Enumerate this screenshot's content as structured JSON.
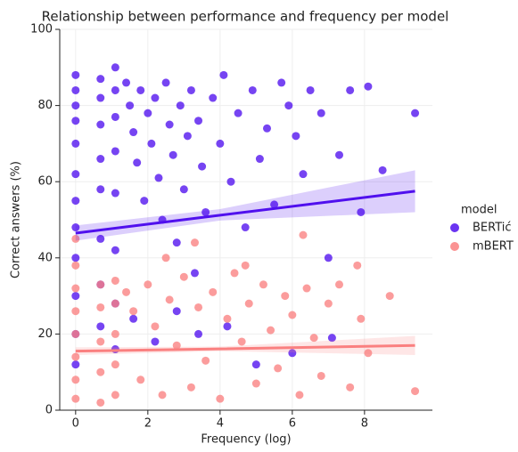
{
  "chart_data": {
    "type": "scatter",
    "title": "Relationship between performance and frequency per model",
    "x_label": "Frequency (log)",
    "y_label": "Correct answers (%)",
    "legend_title": "model",
    "legend_position": "right",
    "grid": true,
    "xlim": [
      -0.44,
      9.88
    ],
    "ylim": [
      0,
      100
    ],
    "xticks": [
      0,
      2,
      4,
      6,
      8
    ],
    "yticks": [
      0,
      20,
      40,
      60,
      80,
      100
    ],
    "series": [
      {
        "name": "BERTić",
        "color": "#5010ee",
        "x": [
          0,
          0,
          0,
          0,
          0,
          0,
          0,
          0,
          0,
          0,
          0,
          0,
          0.69,
          0.69,
          0.69,
          0.69,
          0.69,
          0.69,
          0.69,
          0.69,
          1.1,
          1.1,
          1.1,
          1.1,
          1.1,
          1.1,
          1.1,
          1.1,
          1.4,
          1.5,
          1.6,
          1.7,
          1.8,
          1.9,
          2.0,
          2.1,
          2.2,
          2.3,
          2.4,
          2.5,
          2.6,
          2.7,
          2.8,
          2.9,
          3.0,
          3.1,
          3.2,
          3.3,
          3.4,
          3.5,
          3.6,
          3.8,
          4.0,
          4.1,
          4.3,
          4.5,
          4.7,
          4.9,
          5.1,
          5.3,
          5.5,
          5.7,
          5.9,
          6.1,
          6.3,
          6.5,
          6.8,
          7.0,
          7.3,
          7.6,
          7.9,
          8.1,
          8.5,
          9.4,
          1.6,
          2.2,
          2.8,
          3.4,
          4.2,
          5.0,
          6.0,
          7.1
        ],
        "values": [
          88,
          84,
          80,
          76,
          70,
          62,
          55,
          48,
          40,
          30,
          20,
          12,
          87,
          82,
          75,
          66,
          58,
          45,
          33,
          22,
          90,
          84,
          77,
          68,
          57,
          42,
          28,
          16,
          86,
          80,
          73,
          65,
          84,
          55,
          78,
          70,
          82,
          61,
          50,
          86,
          75,
          67,
          44,
          80,
          58,
          72,
          84,
          36,
          76,
          64,
          52,
          82,
          70,
          88,
          60,
          78,
          48,
          84,
          66,
          74,
          54,
          86,
          80,
          72,
          62,
          84,
          78,
          40,
          67,
          84,
          52,
          85,
          63,
          78,
          24,
          18,
          26,
          20,
          22,
          12,
          15,
          19
        ],
        "fit": {
          "x": [
            0,
            4,
            9.4
          ],
          "values": [
            46.5,
            51.2,
            57.5
          ],
          "band_low": [
            44.5,
            49.8,
            52
          ],
          "band_high": [
            48.5,
            52.8,
            63
          ]
        }
      },
      {
        "name": "mBERT",
        "color": "#fa8080",
        "x": [
          0,
          0,
          0,
          0,
          0,
          0,
          0,
          0,
          0.69,
          0.69,
          0.69,
          0.69,
          0.69,
          1.1,
          1.1,
          1.1,
          1.1,
          1.1,
          1.4,
          1.6,
          1.8,
          2.0,
          2.2,
          2.4,
          2.6,
          2.8,
          3.0,
          3.2,
          3.4,
          3.6,
          3.8,
          4.0,
          4.2,
          4.4,
          4.6,
          4.8,
          5.0,
          5.2,
          5.4,
          5.6,
          5.8,
          6.0,
          6.2,
          6.4,
          6.6,
          6.8,
          7.0,
          7.3,
          7.6,
          7.9,
          8.1,
          8.7,
          9.4,
          2.5,
          3.3,
          4.7,
          6.3,
          7.8
        ],
        "values": [
          45,
          38,
          32,
          26,
          20,
          14,
          8,
          3,
          33,
          27,
          18,
          10,
          2,
          34,
          28,
          20,
          12,
          4,
          31,
          26,
          8,
          33,
          22,
          4,
          29,
          17,
          35,
          6,
          27,
          13,
          31,
          3,
          24,
          36,
          18,
          28,
          7,
          33,
          21,
          11,
          30,
          25,
          4,
          32,
          19,
          9,
          28,
          33,
          6,
          24,
          15,
          30,
          5,
          40,
          44,
          38,
          46,
          38
        ],
        "fit": {
          "x": [
            0,
            4,
            9.4
          ],
          "values": [
            15.5,
            16.1,
            17
          ],
          "band_low": [
            14.5,
            15.5,
            14.5
          ],
          "band_high": [
            16.5,
            16.7,
            19.5
          ]
        }
      }
    ]
  }
}
